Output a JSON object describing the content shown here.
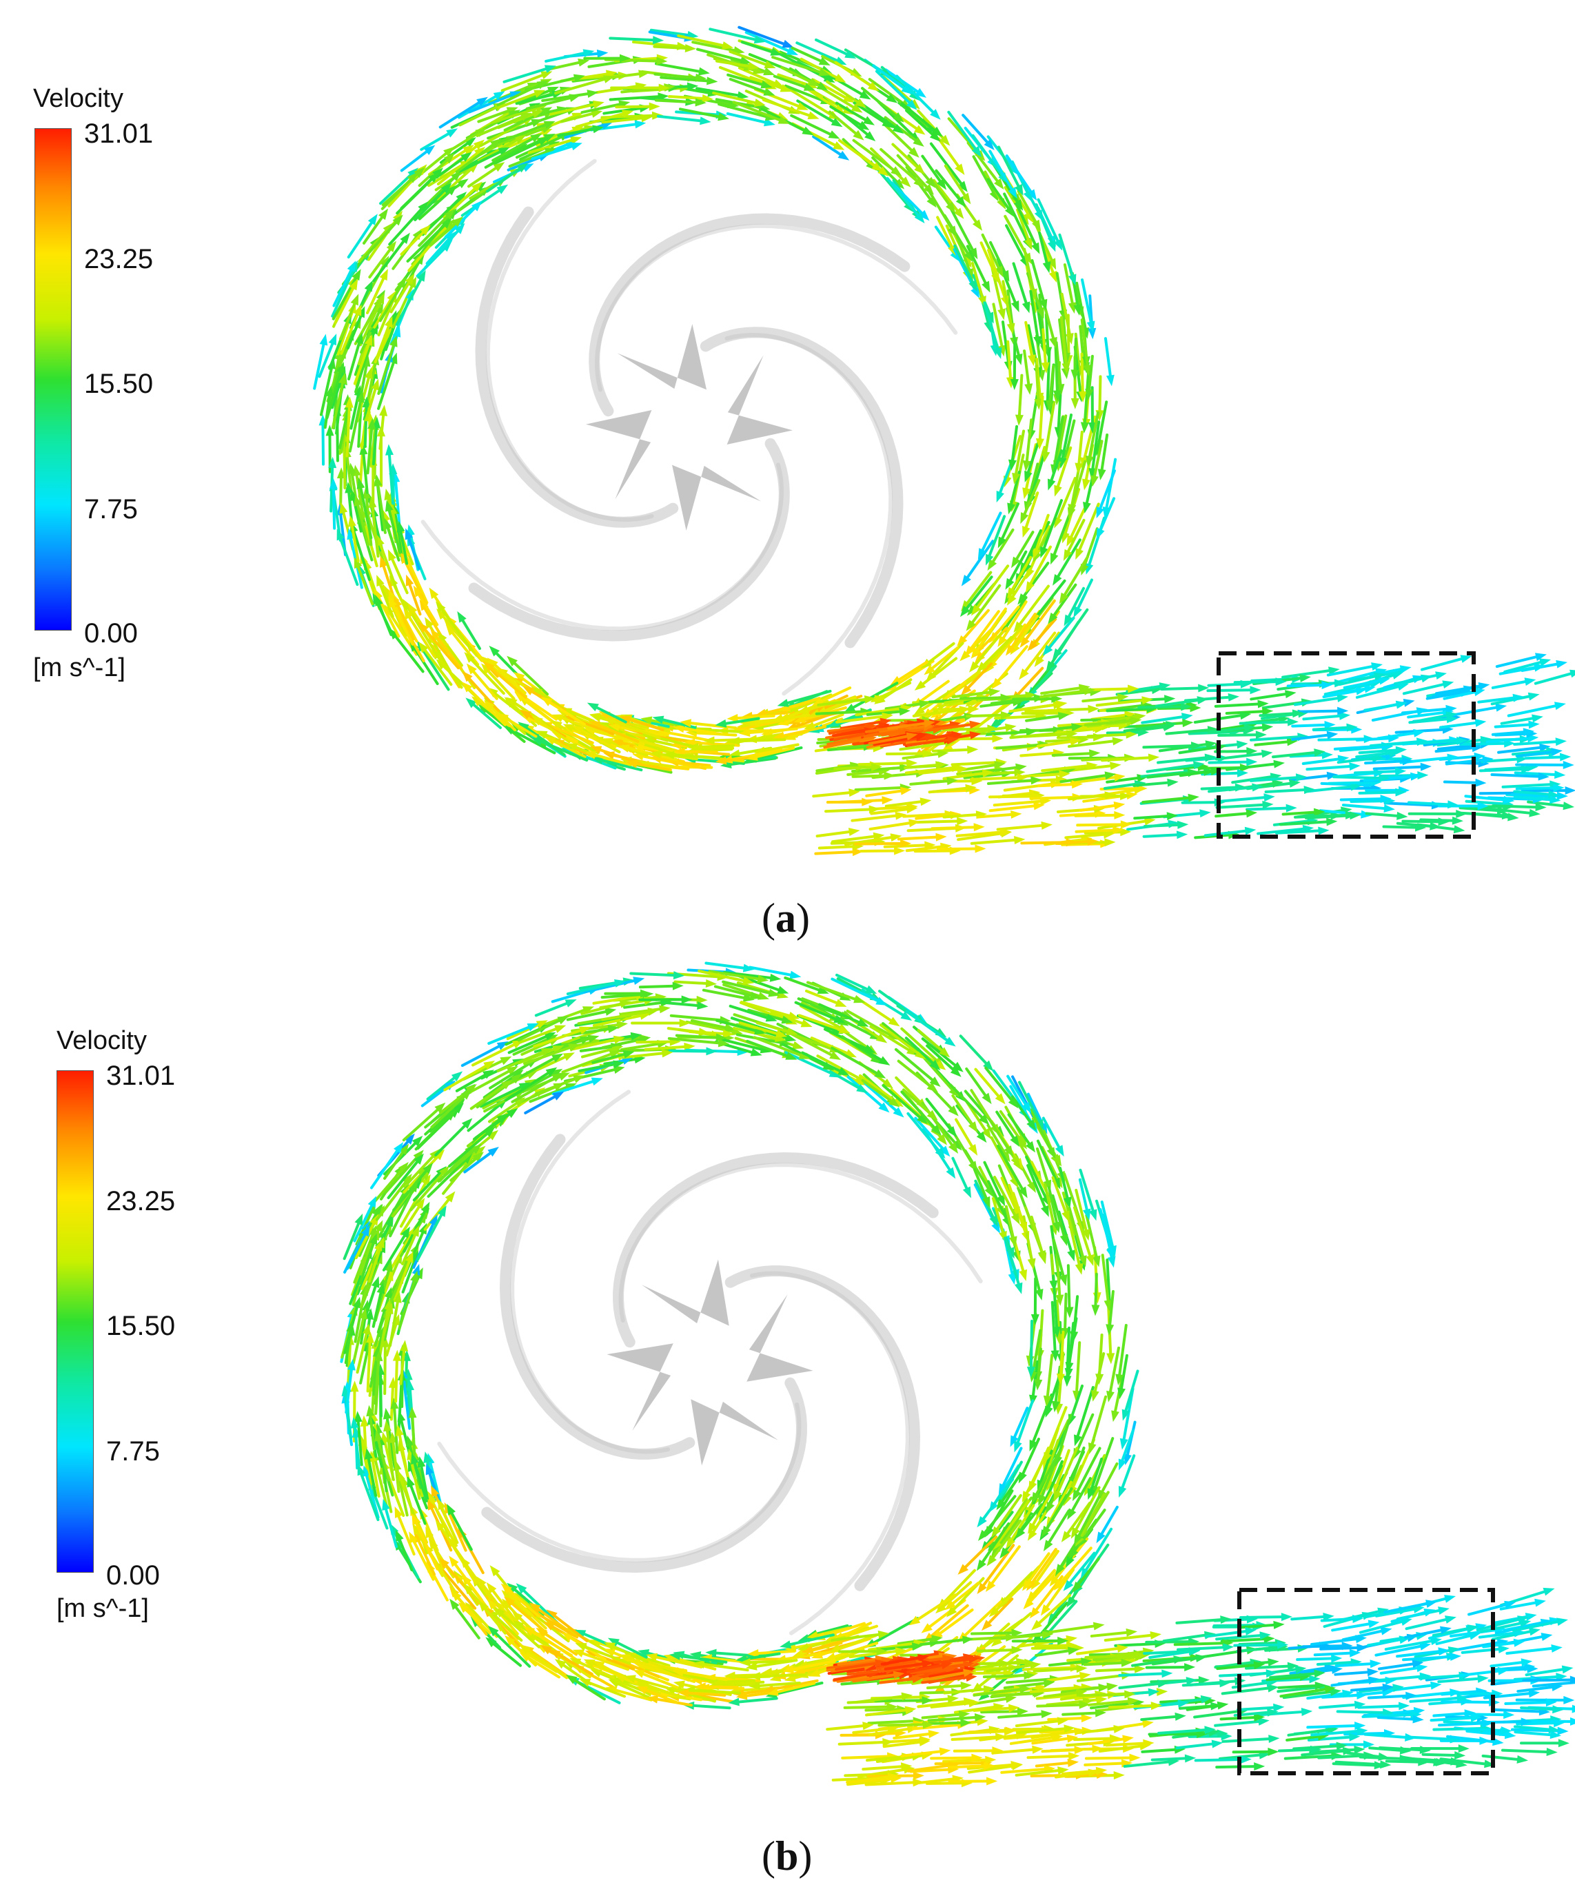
{
  "panels": [
    {
      "caption": {
        "open": "(",
        "letter": "a",
        "close": ")"
      },
      "legend": {
        "title": "Velocity",
        "ticks": [
          "31.01",
          "23.25",
          "15.50",
          "7.75",
          "0.00"
        ],
        "unit": "[m s^-1]"
      }
    },
    {
      "caption": {
        "open": "(",
        "letter": "b",
        "close": ")"
      },
      "legend": {
        "title": "Velocity",
        "ticks": [
          "31.01",
          "23.25",
          "15.50",
          "7.75",
          "0.00"
        ],
        "unit": "[m s^-1]"
      }
    }
  ],
  "colors": {
    "background": "#ffffff",
    "colormap": [
      "#0000ff",
      "#0a78ff",
      "#00e6ff",
      "#10e8a0",
      "#2fe030",
      "#c8f000",
      "#ffe600",
      "#ff8a00",
      "#ff1e00"
    ],
    "impeller": "#9a9a9a",
    "highlight_box": "#111111"
  },
  "icons": {
    "vector": "arrow-glyph",
    "impeller": "four-blade-impeller"
  }
}
